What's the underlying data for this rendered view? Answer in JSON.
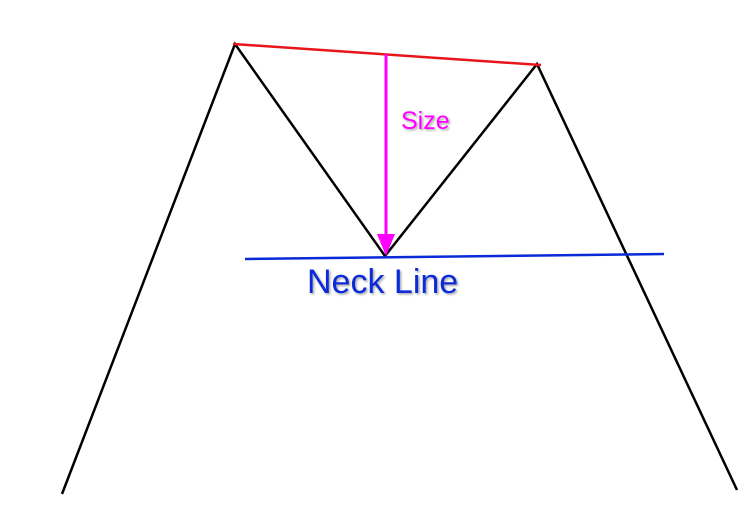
{
  "labels": {
    "size": "Size",
    "neckline": "Neck Line"
  },
  "colors": {
    "pattern_line": "#000000",
    "top_line": "#e8151b",
    "size_arrow": "#ff00ff",
    "neckline": "#0a2ad8",
    "background": "#ffffff"
  }
}
